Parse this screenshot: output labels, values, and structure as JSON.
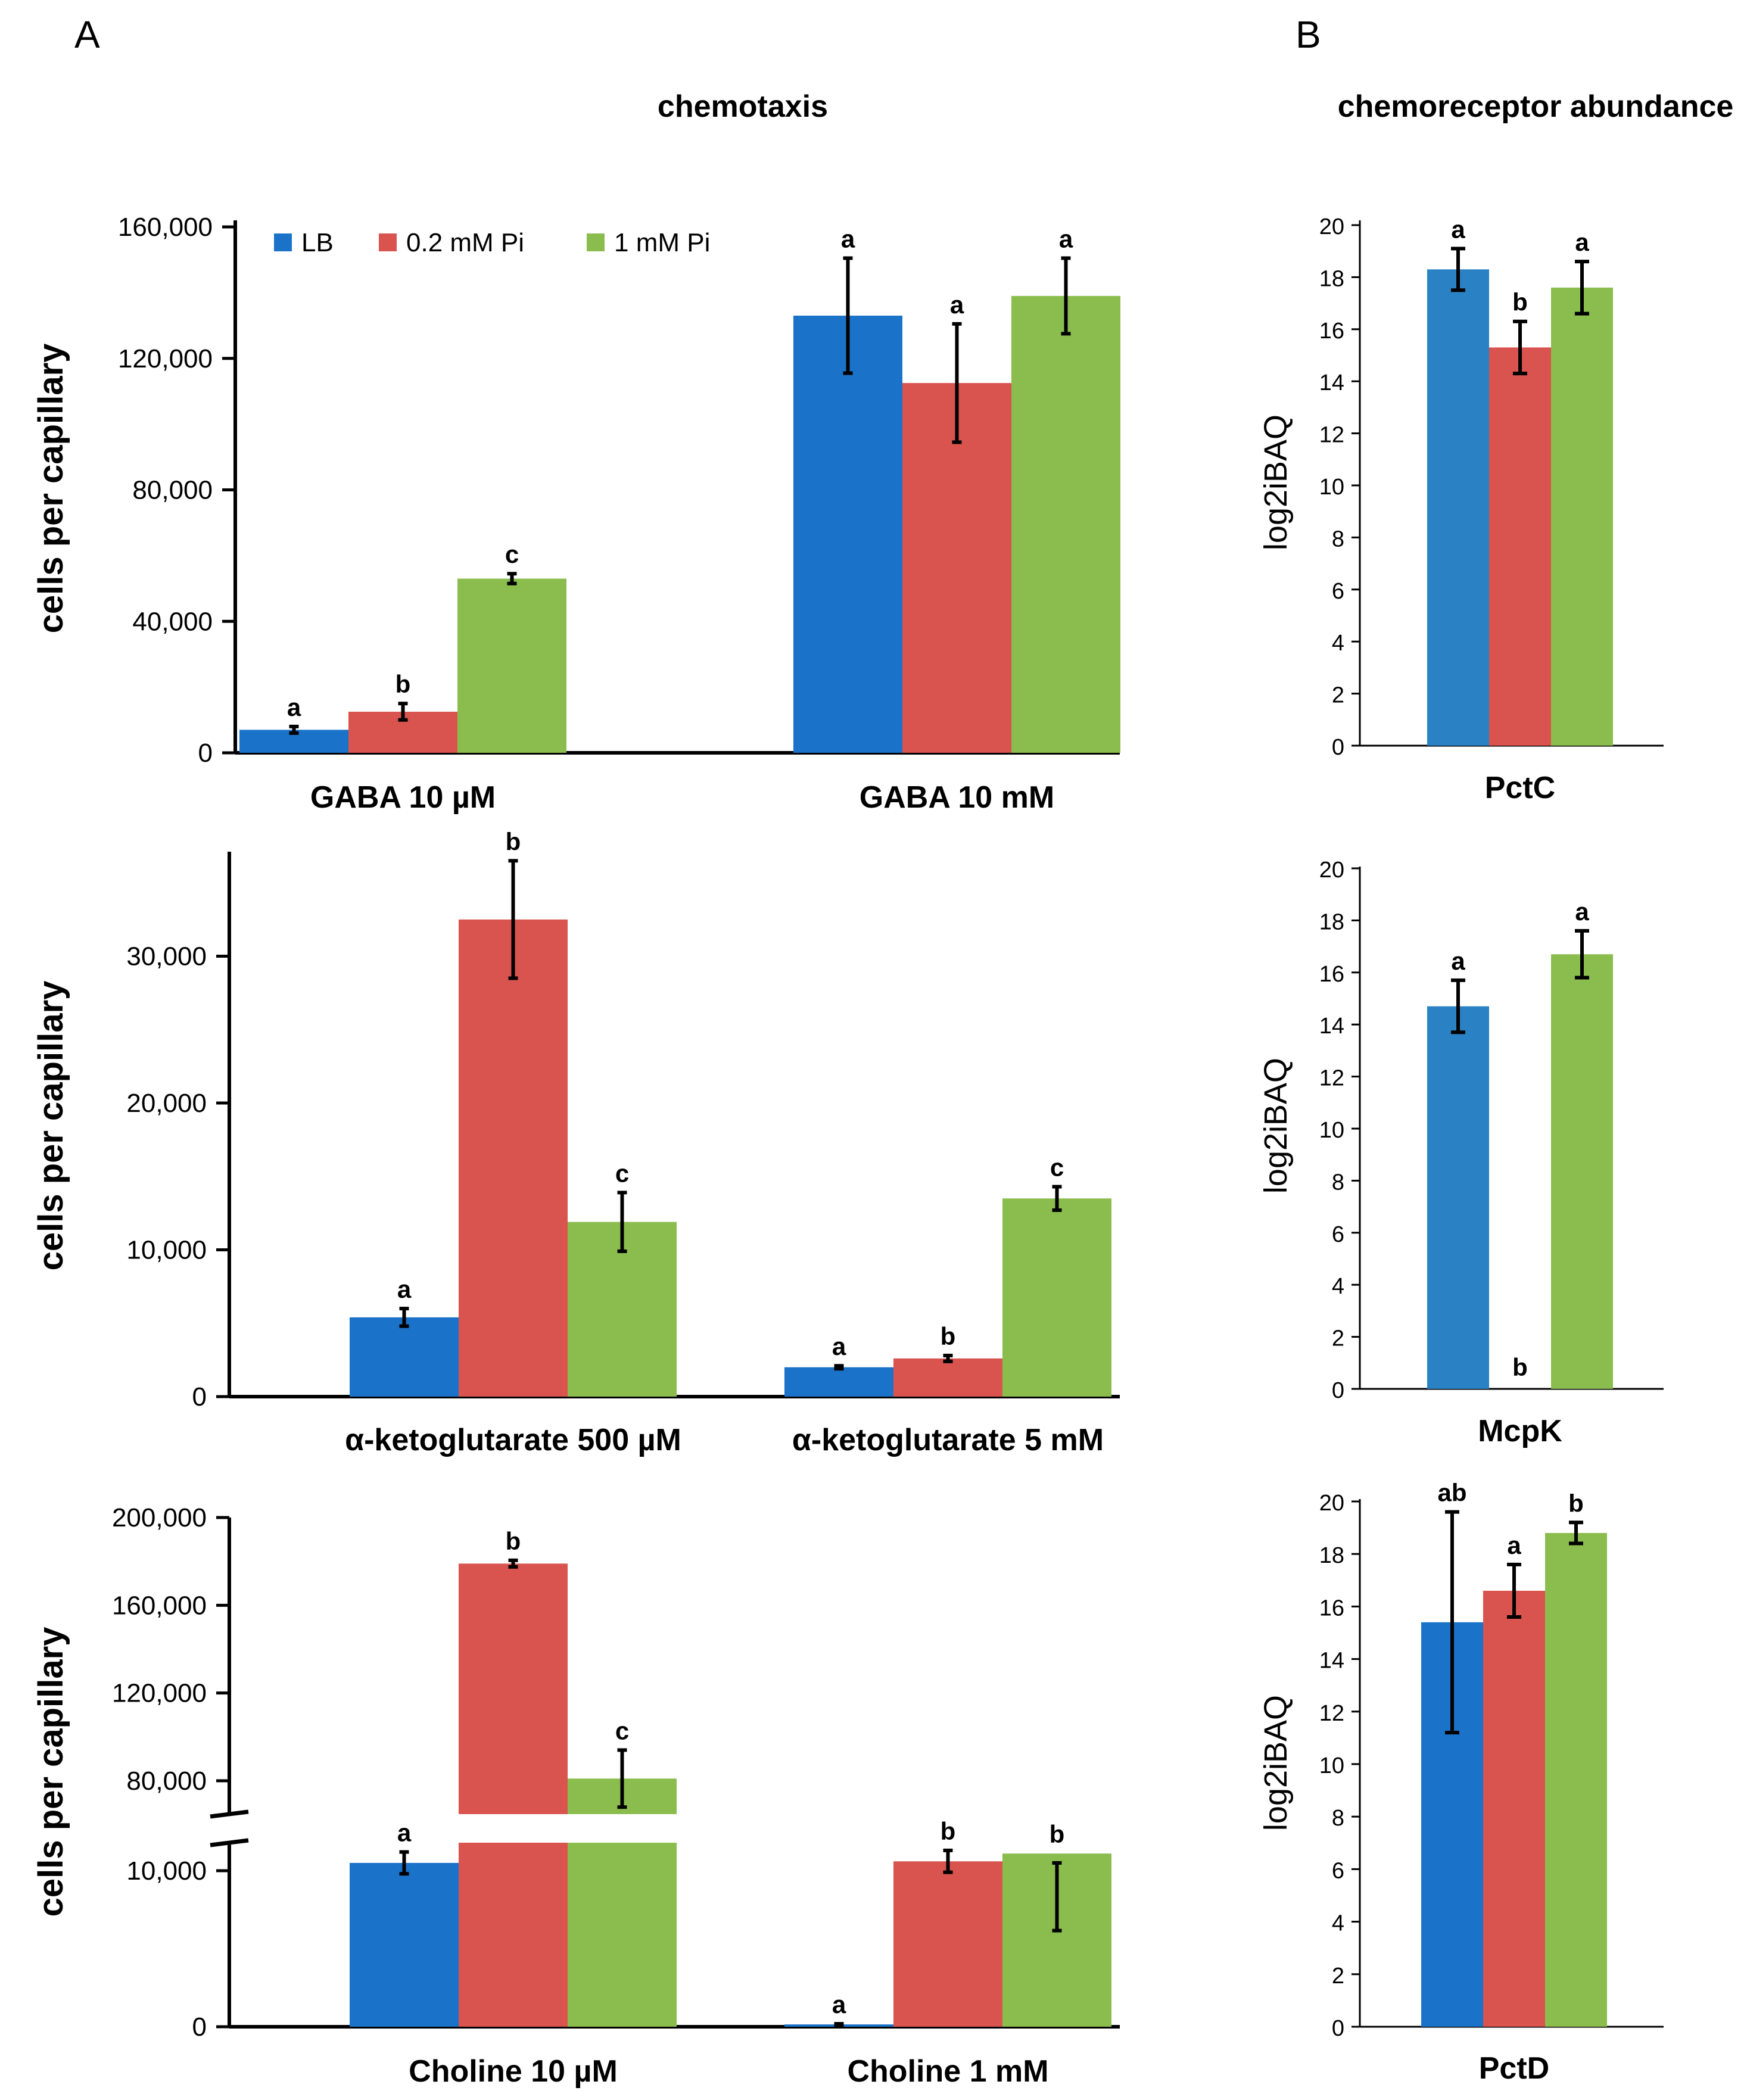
{
  "panel_labels": {
    "a": "A",
    "b": "B"
  },
  "section_titles": {
    "chemotaxis": "chemotaxis",
    "abundance": "chemoreceptor abundance"
  },
  "colors": {
    "LB": "#1a72c9",
    "0.2 mM Pi": "#d9534f",
    "1 mM Pi": "#8bbd4e",
    "LB_B": "#2a82c4"
  },
  "legend": [
    {
      "key": "LB",
      "label": "LB"
    },
    {
      "key": "0.2 mM Pi",
      "label": "0.2 mM Pi"
    },
    {
      "key": "1 mM Pi",
      "label": "1 mM Pi"
    }
  ],
  "chart_data": [
    {
      "id": "A1",
      "type": "bar",
      "title": "chemotaxis",
      "ylabel": "cells per capillary",
      "ylim": [
        0,
        160000
      ],
      "ytick_labels": [
        "0",
        "40,000",
        "80,000",
        "120,000",
        "160,000"
      ],
      "categories": [
        "GABA 10 µM",
        "GABA 10 mM"
      ],
      "series": [
        {
          "name": "LB",
          "values": [
            7000,
            133000
          ],
          "errors": [
            1000,
            17500
          ],
          "sig": [
            "a",
            "a"
          ]
        },
        {
          "name": "0.2 mM Pi",
          "values": [
            12500,
            112500
          ],
          "errors": [
            2500,
            18000
          ],
          "sig": [
            "b",
            "a"
          ]
        },
        {
          "name": "1 mM Pi",
          "values": [
            53000,
            139000
          ],
          "errors": [
            1500,
            11500
          ],
          "sig": [
            "c",
            "a"
          ]
        }
      ]
    },
    {
      "id": "A2",
      "type": "bar",
      "ylabel": "cells per capillary",
      "ylim": [
        0,
        36000
      ],
      "ytick_labels": [
        "0",
        "10,000",
        "20,000",
        "30,000"
      ],
      "categories": [
        "α-ketoglutarate 500 µM",
        "α-ketoglutarate  5 mM"
      ],
      "series": [
        {
          "name": "LB",
          "values": [
            5400,
            2000
          ],
          "errors": [
            600,
            100
          ],
          "sig": [
            "a",
            "a"
          ]
        },
        {
          "name": "0.2 mM Pi",
          "values": [
            32500,
            2600
          ],
          "errors": [
            4000,
            200
          ],
          "sig": [
            "b",
            "b"
          ]
        },
        {
          "name": "1 mM Pi",
          "values": [
            11900,
            13500
          ],
          "errors": [
            2000,
            800
          ],
          "sig": [
            "c",
            "c"
          ]
        }
      ]
    },
    {
      "id": "A3",
      "type": "bar",
      "axis_break": true,
      "ylabel": "cells per capillary",
      "ylim": [
        0,
        200000
      ],
      "ytick_labels": [
        "0",
        "10,000",
        "80,000",
        "120,000",
        "160,000",
        "200,000"
      ],
      "categories": [
        "Choline 10 µM",
        "Choline 1 mM"
      ],
      "series": [
        {
          "name": "LB",
          "values": [
            10500,
            150
          ],
          "errors": [
            700,
            40
          ],
          "sig": [
            "a",
            "a"
          ]
        },
        {
          "name": "0.2 mM Pi",
          "values": [
            179000,
            10600
          ],
          "errors": [
            1500,
            700
          ],
          "sig": [
            "b",
            "b"
          ]
        },
        {
          "name": "1 mM Pi",
          "values": [
            81000,
            11100
          ],
          "errors": [
            13000,
            600
          ],
          "sig": [
            "c",
            "b"
          ]
        }
      ]
    },
    {
      "id": "B1",
      "type": "bar",
      "title": "chemoreceptor abundance",
      "ylabel": "log2iBAQ",
      "ylim": [
        0,
        20
      ],
      "ytick_labels": [
        "0",
        "2",
        "4",
        "6",
        "8",
        "10",
        "12",
        "14",
        "16",
        "18",
        "20"
      ],
      "categories": [
        "PctC"
      ],
      "series": [
        {
          "name": "LB",
          "values": [
            18.3
          ],
          "errors": [
            0.8
          ],
          "sig": [
            "a"
          ]
        },
        {
          "name": "0.2 mM Pi",
          "values": [
            15.3
          ],
          "errors": [
            1.0
          ],
          "sig": [
            "b"
          ]
        },
        {
          "name": "1 mM Pi",
          "values": [
            17.6
          ],
          "errors": [
            1.0
          ],
          "sig": [
            "a"
          ]
        }
      ]
    },
    {
      "id": "B2",
      "type": "bar",
      "ylabel": "log2iBAQ",
      "ylim": [
        0,
        20
      ],
      "ytick_labels": [
        "0",
        "2",
        "4",
        "6",
        "8",
        "10",
        "12",
        "14",
        "16",
        "18",
        "20"
      ],
      "categories": [
        "McpK"
      ],
      "series": [
        {
          "name": "LB",
          "values": [
            14.7
          ],
          "errors": [
            1.0
          ],
          "sig": [
            "a"
          ]
        },
        {
          "name": "0.2 mM Pi",
          "values": [
            0
          ],
          "errors": [
            0
          ],
          "sig": [
            "b"
          ]
        },
        {
          "name": "1 mM Pi",
          "values": [
            16.7
          ],
          "errors": [
            0.9
          ],
          "sig": [
            "a"
          ]
        }
      ]
    },
    {
      "id": "B3",
      "type": "bar",
      "ylabel": "log2iBAQ",
      "ylim": [
        0,
        20
      ],
      "ytick_labels": [
        "0",
        "2",
        "4",
        "6",
        "8",
        "10",
        "12",
        "14",
        "16",
        "18",
        "20"
      ],
      "categories": [
        "PctD"
      ],
      "series": [
        {
          "name": "LB",
          "values": [
            15.4
          ],
          "errors": [
            4.2
          ],
          "sig": [
            "ab"
          ]
        },
        {
          "name": "0.2 mM Pi",
          "values": [
            16.6
          ],
          "errors": [
            1.0
          ],
          "sig": [
            "a"
          ]
        },
        {
          "name": "1 mM Pi",
          "values": [
            18.8
          ],
          "errors": [
            0.4
          ],
          "sig": [
            "b"
          ]
        }
      ]
    }
  ]
}
